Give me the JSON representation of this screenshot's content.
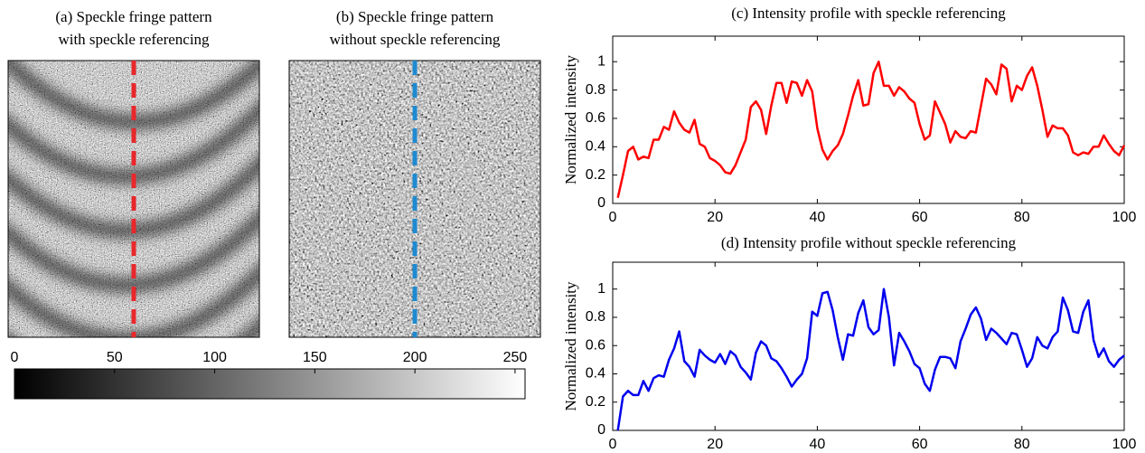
{
  "chart_data": [
    {
      "type": "image",
      "title": [
        "(a) Speckle fringe pattern",
        "with speckle referencing"
      ],
      "line_color": "#e8282c"
    },
    {
      "type": "image",
      "title": [
        "(b) Speckle fringe pattern",
        "without speckle referencing"
      ],
      "line_color": "#1f8ad0"
    },
    {
      "type": "colorbar",
      "xlim": [
        0,
        255
      ],
      "xticks": [
        0,
        50,
        100,
        150,
        200,
        250
      ]
    },
    {
      "type": "line",
      "title": "(c) Intensity profile with speckle referencing",
      "y_label": "Normalized intensity",
      "color": "#ff0000",
      "x": [
        1,
        2,
        3,
        4,
        5,
        6,
        7,
        8,
        9,
        10,
        11,
        12,
        13,
        14,
        15,
        16,
        17,
        18,
        19,
        20,
        21,
        22,
        23,
        24,
        25,
        26,
        27,
        28,
        29,
        30,
        31,
        32,
        33,
        34,
        35,
        36,
        37,
        38,
        39,
        40,
        41,
        42,
        43,
        44,
        45,
        46,
        47,
        48,
        49,
        50,
        51,
        52,
        53,
        54,
        55,
        56,
        57,
        58,
        59,
        60,
        61,
        62,
        63,
        64,
        65,
        66,
        67,
        68,
        69,
        70,
        71,
        72,
        73,
        74,
        75,
        76,
        77,
        78,
        79,
        80,
        81,
        82,
        83,
        84,
        85,
        86,
        87,
        88,
        89,
        90,
        91,
        92,
        93,
        94,
        95,
        96,
        97,
        98,
        99,
        100
      ],
      "values": [
        0.04,
        0.2,
        0.37,
        0.4,
        0.31,
        0.33,
        0.32,
        0.45,
        0.45,
        0.54,
        0.52,
        0.65,
        0.57,
        0.52,
        0.5,
        0.59,
        0.42,
        0.4,
        0.32,
        0.3,
        0.27,
        0.22,
        0.21,
        0.27,
        0.36,
        0.45,
        0.68,
        0.72,
        0.66,
        0.49,
        0.69,
        0.85,
        0.85,
        0.71,
        0.86,
        0.85,
        0.76,
        0.87,
        0.79,
        0.53,
        0.38,
        0.31,
        0.37,
        0.41,
        0.49,
        0.62,
        0.76,
        0.87,
        0.69,
        0.7,
        0.92,
        1.0,
        0.83,
        0.83,
        0.76,
        0.82,
        0.79,
        0.74,
        0.71,
        0.56,
        0.45,
        0.48,
        0.72,
        0.64,
        0.56,
        0.43,
        0.51,
        0.47,
        0.46,
        0.51,
        0.5,
        0.69,
        0.88,
        0.84,
        0.77,
        0.98,
        0.95,
        0.72,
        0.83,
        0.8,
        0.9,
        0.96,
        0.83,
        0.66,
        0.47,
        0.55,
        0.53,
        0.53,
        0.48,
        0.36,
        0.34,
        0.36,
        0.35,
        0.4,
        0.4,
        0.48,
        0.42,
        0.37,
        0.34,
        0.41
      ],
      "xlim": [
        0,
        100
      ],
      "xticks": [
        0,
        20,
        40,
        60,
        80,
        100
      ],
      "ylim": [
        0,
        1.18
      ],
      "yticks": [
        0,
        0.2,
        0.4,
        0.6,
        0.8,
        1
      ]
    },
    {
      "type": "line",
      "title": "(d) Intensity profile without speckle referencing",
      "y_label": "Normalized intensity",
      "color": "#0000ee",
      "x": [
        1,
        2,
        3,
        4,
        5,
        6,
        7,
        8,
        9,
        10,
        11,
        12,
        13,
        14,
        15,
        16,
        17,
        18,
        19,
        20,
        21,
        22,
        23,
        24,
        25,
        26,
        27,
        28,
        29,
        30,
        31,
        32,
        33,
        34,
        35,
        36,
        37,
        38,
        39,
        40,
        41,
        42,
        43,
        44,
        45,
        46,
        47,
        48,
        49,
        50,
        51,
        52,
        53,
        54,
        55,
        56,
        57,
        58,
        59,
        60,
        61,
        62,
        63,
        64,
        65,
        66,
        67,
        68,
        69,
        70,
        71,
        72,
        73,
        74,
        75,
        76,
        77,
        78,
        79,
        80,
        81,
        82,
        83,
        84,
        85,
        86,
        87,
        88,
        89,
        90,
        91,
        92,
        93,
        94,
        95,
        96,
        97,
        98,
        99,
        100
      ],
      "values": [
        0,
        0.24,
        0.28,
        0.25,
        0.25,
        0.35,
        0.28,
        0.37,
        0.39,
        0.38,
        0.5,
        0.58,
        0.7,
        0.49,
        0.45,
        0.38,
        0.57,
        0.53,
        0.5,
        0.48,
        0.54,
        0.47,
        0.56,
        0.53,
        0.45,
        0.41,
        0.36,
        0.55,
        0.63,
        0.6,
        0.51,
        0.49,
        0.44,
        0.38,
        0.31,
        0.36,
        0.4,
        0.51,
        0.84,
        0.81,
        0.97,
        0.98,
        0.85,
        0.66,
        0.5,
        0.68,
        0.67,
        0.83,
        0.92,
        0.73,
        0.68,
        0.71,
        1.0,
        0.8,
        0.46,
        0.69,
        0.63,
        0.56,
        0.47,
        0.44,
        0.33,
        0.28,
        0.43,
        0.52,
        0.52,
        0.51,
        0.44,
        0.63,
        0.72,
        0.82,
        0.87,
        0.79,
        0.64,
        0.72,
        0.69,
        0.65,
        0.61,
        0.69,
        0.68,
        0.57,
        0.45,
        0.51,
        0.66,
        0.6,
        0.58,
        0.66,
        0.7,
        0.94,
        0.85,
        0.7,
        0.69,
        0.84,
        0.92,
        0.64,
        0.52,
        0.58,
        0.49,
        0.45,
        0.5,
        0.53
      ],
      "xlim": [
        0,
        100
      ],
      "xticks": [
        0,
        20,
        40,
        60,
        80,
        100
      ],
      "ylim": [
        0,
        1.19
      ],
      "yticks": [
        0,
        0.2,
        0.4,
        0.6,
        0.8,
        1
      ]
    }
  ]
}
